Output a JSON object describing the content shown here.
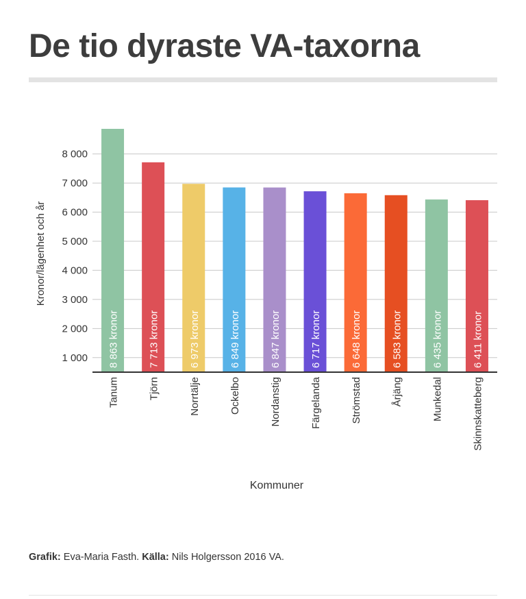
{
  "header": {
    "title": "De tio dyraste VA-taxorna"
  },
  "chart_data": {
    "type": "bar",
    "categories": [
      "Tanum",
      "Tjörn",
      "Norrtälje",
      "Ockelbo",
      "Nordanstig",
      "Färgelanda",
      "Strömstad",
      "Årjäng",
      "Munkedal",
      "Skinnskatteberg"
    ],
    "values": [
      8863,
      7713,
      6973,
      6849,
      6847,
      6717,
      6648,
      6583,
      6435,
      6411
    ],
    "data_labels": [
      "8 863 kronor",
      "7 713 kronor",
      "6 973 kronor",
      "6 849 kronor",
      "6 847 kronor",
      "6 717 kronor",
      "6 648 kronor",
      "6 583 kronor",
      "6 435 kronor",
      "6 411 kronor"
    ],
    "colors": [
      "#8fc4a3",
      "#dd5056",
      "#eecb69",
      "#57b2e7",
      "#a98fca",
      "#6a50d7",
      "#fb6a37",
      "#e64f22",
      "#8fc4a3",
      "#dd5056"
    ],
    "xlabel": "Kommuner",
    "ylabel": "Kronor/lägenhet och år",
    "yticks": [
      1000,
      2000,
      3000,
      4000,
      5000,
      6000,
      7000,
      8000
    ],
    "ytick_labels": [
      "1 000",
      "2 000",
      "3 000",
      "4 000",
      "5 000",
      "6 000",
      "7 000",
      "8 000"
    ],
    "ylim": [
      500,
      8863
    ],
    "grid": true
  },
  "footer": {
    "credit_label": "Grafik:",
    "credit_name": "Eva-Maria Fasth.",
    "source_label": "Källa:",
    "source_name": "Nils Holgersson 2016 VA."
  }
}
